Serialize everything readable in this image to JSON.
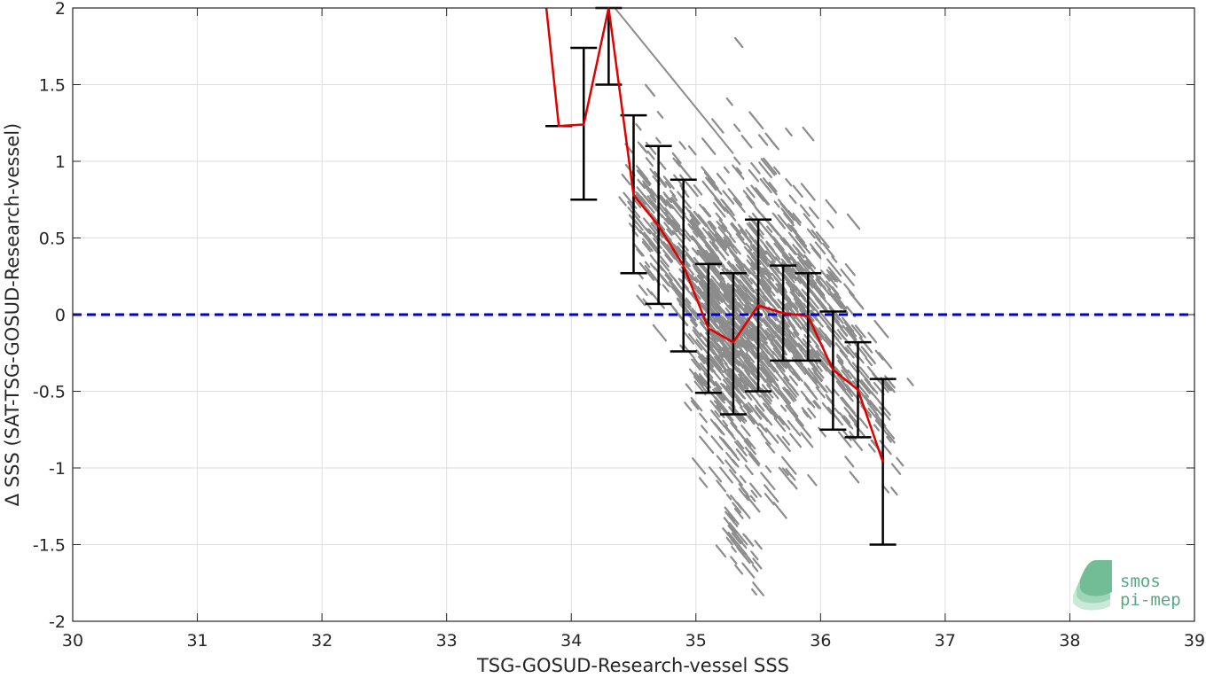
{
  "chart_data": {
    "type": "scatter",
    "title": "",
    "xlabel": "TSG-GOSUD-Research-vessel SSS",
    "ylabel": "Δ SSS (SAT-TSG-GOSUD-Research-vessel)",
    "xlim": [
      30,
      39
    ],
    "ylim": [
      -2,
      2
    ],
    "x_ticks": [
      30,
      31,
      32,
      33,
      34,
      35,
      36,
      37,
      38,
      39
    ],
    "x_tick_labels": [
      "30",
      "31",
      "32",
      "33",
      "34",
      "35",
      "36",
      "37",
      "38",
      "39"
    ],
    "y_ticks": [
      -2,
      -1.5,
      -1,
      -0.5,
      0,
      0.5,
      1,
      1.5,
      2
    ],
    "y_tick_labels": [
      "-2",
      "-1.5",
      "-1",
      "-0.5",
      "0",
      "0.5",
      "1",
      "1.5",
      "2"
    ],
    "grid": true,
    "reference_line": {
      "y": 0,
      "color": "#0000cc",
      "style": "dashed"
    },
    "scatter_color": "#8c8c8c",
    "scatter_clusters": [
      {
        "x": 34.55,
        "y": 0.7,
        "sx": 0.08,
        "sy": 0.25,
        "n": 60
      },
      {
        "x": 34.75,
        "y": 0.55,
        "sx": 0.1,
        "sy": 0.3,
        "n": 80
      },
      {
        "x": 34.95,
        "y": 0.3,
        "sx": 0.1,
        "sy": 0.35,
        "n": 120
      },
      {
        "x": 35.1,
        "y": 0.05,
        "sx": 0.12,
        "sy": 0.4,
        "n": 220
      },
      {
        "x": 35.3,
        "y": -0.15,
        "sx": 0.12,
        "sy": 0.45,
        "n": 260
      },
      {
        "x": 35.5,
        "y": 0.0,
        "sx": 0.12,
        "sy": 0.45,
        "n": 260
      },
      {
        "x": 35.7,
        "y": 0.05,
        "sx": 0.12,
        "sy": 0.4,
        "n": 200
      },
      {
        "x": 35.9,
        "y": 0.0,
        "sx": 0.12,
        "sy": 0.35,
        "n": 150
      },
      {
        "x": 36.1,
        "y": -0.2,
        "sx": 0.12,
        "sy": 0.35,
        "n": 90
      },
      {
        "x": 36.3,
        "y": -0.4,
        "sx": 0.1,
        "sy": 0.3,
        "n": 50
      },
      {
        "x": 36.5,
        "y": -0.7,
        "sx": 0.08,
        "sy": 0.3,
        "n": 20
      },
      {
        "x": 35.3,
        "y": -1.4,
        "sx": 0.1,
        "sy": 0.15,
        "n": 30
      }
    ],
    "scatter_line": {
      "x": [
        34.35,
        35.3
      ],
      "y": [
        2.0,
        1.05
      ]
    },
    "series": [
      {
        "color": "#e00000",
        "x": [
          33.8,
          33.9,
          34.1,
          34.3,
          34.5,
          34.7,
          34.9,
          35.1,
          35.3,
          35.5,
          35.7,
          35.9,
          36.1,
          36.3,
          36.5
        ],
        "y": [
          2.0,
          1.23,
          1.24,
          2.0,
          0.78,
          0.58,
          0.32,
          -0.09,
          -0.18,
          0.06,
          0.01,
          -0.01,
          -0.36,
          -0.49,
          -0.96
        ]
      }
    ],
    "error_bars": {
      "color": "#000000",
      "x": [
        33.9,
        34.1,
        34.3,
        34.5,
        34.7,
        34.9,
        35.1,
        35.3,
        35.5,
        35.7,
        35.9,
        36.1,
        36.3,
        36.5
      ],
      "upper": [
        1.23,
        1.74,
        2.0,
        1.3,
        1.1,
        0.88,
        0.33,
        0.27,
        0.62,
        0.32,
        0.27,
        0.02,
        -0.18,
        -0.42
      ],
      "lower": [
        1.23,
        0.75,
        1.5,
        0.27,
        0.07,
        -0.24,
        -0.51,
        -0.65,
        -0.5,
        -0.3,
        -0.3,
        -0.75,
        -0.8,
        -1.5
      ]
    },
    "logo": {
      "line1": "smos",
      "line2": "pi-mep",
      "color": "#5aa882"
    }
  }
}
